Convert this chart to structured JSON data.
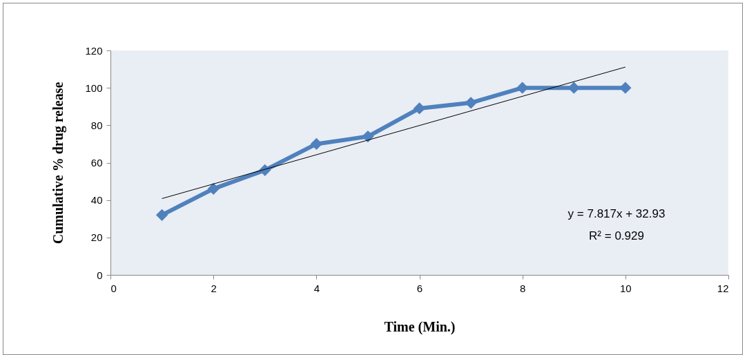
{
  "chart_data": {
    "type": "line",
    "xlabel": "Time (Min.)",
    "ylabel": "Cumulative % drug release",
    "x": [
      1,
      2,
      3,
      4,
      5,
      6,
      7,
      8,
      9,
      10
    ],
    "series": [
      {
        "type": "line",
        "color": "#4f81bd",
        "marker": "diamond",
        "values": [
          32,
          46,
          56,
          70,
          74,
          89,
          92,
          100,
          100,
          100
        ]
      },
      {
        "type": "line",
        "color": "#000000",
        "marker": "none",
        "x": [
          1,
          10
        ],
        "values": [
          40.8,
          111.1
        ]
      }
    ],
    "xlim": [
      0,
      12
    ],
    "xticks": [
      0,
      2,
      4,
      6,
      8,
      10,
      12
    ],
    "ylim": [
      0,
      120
    ],
    "yticks": [
      0,
      20,
      40,
      60,
      80,
      100,
      120
    ],
    "grid": false,
    "annotations": [
      "y = 7.817x + 32.93",
      "R² = 0.929"
    ]
  }
}
